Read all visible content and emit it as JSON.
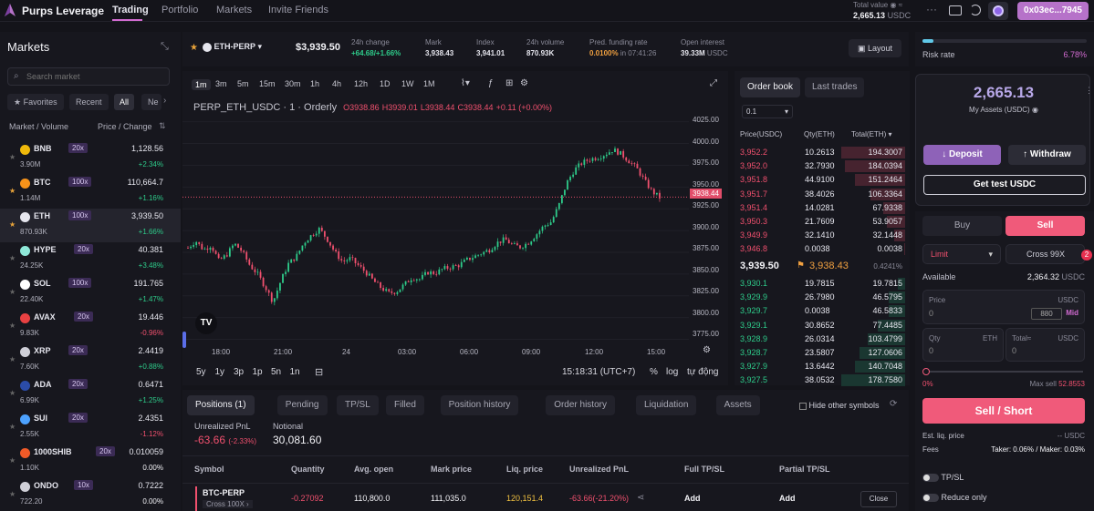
{
  "top": {
    "brand": "Purps Leverage",
    "nav": [
      "Trading",
      "Portfolio",
      "Markets",
      "Invite Friends"
    ],
    "total_value_label": "Total value",
    "total_value": "2,665.13",
    "total_value_unit": "USDC",
    "address": "0x03ec...7945"
  },
  "markets": {
    "title": "Markets",
    "search_placeholder": "Search market",
    "filters": [
      "Favorites",
      "Recent",
      "All",
      "Ne"
    ],
    "col_market": "Market",
    "col_volume": "/ Volume",
    "col_price": "Price / Change",
    "rows": [
      {
        "sym": "BNB",
        "lev": "20x",
        "vol": "3.90M",
        "price": "1,128.56",
        "chg": "+2.34%",
        "up": true,
        "fav": false,
        "color": "#f0b90b"
      },
      {
        "sym": "BTC",
        "lev": "100x",
        "vol": "1.14M",
        "price": "110,664.7",
        "chg": "+1.16%",
        "up": true,
        "fav": true,
        "color": "#f7931a"
      },
      {
        "sym": "ETH",
        "lev": "100x",
        "vol": "870.93K",
        "price": "3,939.50",
        "chg": "+1.66%",
        "up": true,
        "fav": true,
        "color": "#e6e6ee"
      },
      {
        "sym": "HYPE",
        "lev": "20x",
        "vol": "24.25K",
        "price": "40.381",
        "chg": "+3.48%",
        "up": true,
        "fav": false,
        "color": "#8ee8d8"
      },
      {
        "sym": "SOL",
        "lev": "100x",
        "vol": "22.40K",
        "price": "191.765",
        "chg": "+1.47%",
        "up": true,
        "fav": false,
        "color": "#ffffff"
      },
      {
        "sym": "AVAX",
        "lev": "20x",
        "vol": "9.83K",
        "price": "19.446",
        "chg": "-0.96%",
        "up": false,
        "fav": false,
        "color": "#e84142"
      },
      {
        "sym": "XRP",
        "lev": "20x",
        "vol": "7.60K",
        "price": "2.4419",
        "chg": "+0.88%",
        "up": true,
        "fav": false,
        "color": "#cfcfd8"
      },
      {
        "sym": "ADA",
        "lev": "20x",
        "vol": "6.99K",
        "price": "0.6471",
        "chg": "+1.25%",
        "up": true,
        "fav": false,
        "color": "#2b4ca8"
      },
      {
        "sym": "SUI",
        "lev": "20x",
        "vol": "2.55K",
        "price": "2.4351",
        "chg": "-1.12%",
        "up": false,
        "fav": false,
        "color": "#4da2ff"
      },
      {
        "sym": "1000SHIB",
        "lev": "20x",
        "vol": "1.10K",
        "price": "0.010059",
        "chg": "0.00%",
        "up": true,
        "fav": false,
        "color": "#f05a28"
      },
      {
        "sym": "ONDO",
        "lev": "10x",
        "vol": "722.20",
        "price": "0.7222",
        "chg": "0.00%",
        "up": true,
        "fav": false,
        "color": "#d0d0d8"
      }
    ]
  },
  "header": {
    "pair": "ETH-PERP",
    "last_price": "$3,939.50",
    "stats": [
      {
        "label": "24h change",
        "value": "+64.68/+1.66%",
        "tone": "green"
      },
      {
        "label": "Mark",
        "value": "3,938.43",
        "tone": "white"
      },
      {
        "label": "Index",
        "value": "3,941.01",
        "tone": "white"
      },
      {
        "label": "24h volume",
        "value": "870.93K",
        "tone": "white"
      },
      {
        "label": "Pred. funding rate",
        "value": "0.0100%",
        "extra": "in 07:41:26",
        "tone": "orange"
      },
      {
        "label": "Open interest",
        "value": "39.33M",
        "extra": "USDC",
        "tone": "white"
      }
    ],
    "layout_label": "Layout"
  },
  "chart": {
    "timeframes": [
      "1m",
      "3m",
      "5m",
      "15m",
      "30m",
      "1h",
      "4h",
      "12h",
      "1D",
      "1W",
      "1M"
    ],
    "selected_tf": "1m",
    "legend_symbol": "PERP_ETH_USDC · 1 · Orderly",
    "o": "O3938.86",
    "h": "H3939.01",
    "l": "L3938.44",
    "c": "C3938.44",
    "chg": "+0.11 (+0.00%)",
    "y_ticks": [
      "4025.00",
      "4000.00",
      "3975.00",
      "3950.00",
      "3925.00",
      "3900.00",
      "3875.00",
      "3850.00",
      "3825.00",
      "3800.00",
      "3775.00"
    ],
    "x_ticks": [
      "18:00",
      "21:00",
      "24",
      "03:00",
      "06:00",
      "09:00",
      "12:00",
      "15:00"
    ],
    "current_price_tag": "3938.44",
    "ranges": [
      "5y",
      "1y",
      "3p",
      "1p",
      "5n",
      "1n"
    ],
    "clock": "15:18:31 (UTC+7)",
    "options": [
      "%",
      "log",
      "tự động"
    ],
    "chart_data": {
      "type": "candlestick",
      "title": "PERP_ETH_USDC · 1 · Orderly",
      "ylim": [
        3765,
        4032
      ],
      "x_labels": [
        "18:00",
        "21:00",
        "24",
        "03:00",
        "06:00",
        "09:00",
        "12:00",
        "15:00"
      ],
      "series": [
        {
          "values": [
            3880,
            3888,
            3878,
            3883,
            3865,
            3872,
            3885,
            3876,
            3860,
            3850,
            3835,
            3818,
            3842,
            3862,
            3870,
            3886,
            3895,
            3902,
            3890,
            3875,
            3864,
            3868,
            3860,
            3852,
            3842,
            3834,
            3828,
            3830,
            3838,
            3846,
            3844,
            3852,
            3851,
            3856,
            3858,
            3860,
            3866,
            3870,
            3874,
            3878,
            3886,
            3890,
            3883,
            3881,
            3886,
            3895,
            3905,
            3910,
            3930,
            3955,
            3970,
            3978,
            3982,
            3984,
            3988,
            3993,
            3988,
            3980,
            3972,
            3958,
            3945,
            3938
          ]
        }
      ]
    }
  },
  "book": {
    "tabs": [
      "Order book",
      "Last trades"
    ],
    "step": "0.1",
    "cols": [
      "Price(USDC)",
      "Qty(ETH)",
      "Total(ETH)"
    ],
    "asks": [
      [
        "3,952.2",
        "10.2613",
        "194.3007"
      ],
      [
        "3,952.0",
        "32.7930",
        "184.0394"
      ],
      [
        "3,951.8",
        "44.9100",
        "151.2464"
      ],
      [
        "3,951.7",
        "38.4026",
        "106.3364"
      ],
      [
        "3,951.4",
        "14.0281",
        "67.9338"
      ],
      [
        "3,950.3",
        "21.7609",
        "53.9057"
      ],
      [
        "3,949.9",
        "32.1410",
        "32.1448"
      ],
      [
        "3,946.8",
        "0.0038",
        "0.0038"
      ]
    ],
    "mid_price": "3,939.50",
    "mark_price": "3,938.43",
    "spread": "0.4241%",
    "bids": [
      [
        "3,930.1",
        "19.7815",
        "19.7815"
      ],
      [
        "3,929.9",
        "26.7980",
        "46.5795"
      ],
      [
        "3,929.7",
        "0.0038",
        "46.5833"
      ],
      [
        "3,929.1",
        "30.8652",
        "77.4485"
      ],
      [
        "3,928.9",
        "26.0314",
        "103.4799"
      ],
      [
        "3,928.7",
        "23.5807",
        "127.0606"
      ],
      [
        "3,927.9",
        "13.6442",
        "140.7048"
      ],
      [
        "3,927.5",
        "38.0532",
        "178.7580"
      ]
    ],
    "ask_depth": [
      1.0,
      0.95,
      0.78,
      0.55,
      0.35,
      0.28,
      0.17,
      0.02
    ],
    "bid_depth": [
      0.11,
      0.26,
      0.26,
      0.43,
      0.58,
      0.71,
      0.79,
      1.0
    ]
  },
  "positions": {
    "tabs": [
      "Positions (1)",
      "Pending",
      "TP/SL",
      "Filled",
      "Position history",
      "Order history",
      "Liquidation",
      "Assets"
    ],
    "hide_other": "Hide other symbols",
    "upnl_label": "Unrealized PnL",
    "upnl_value": "-63.66",
    "upnl_pct": "(-2.33%)",
    "notional_label": "Notional",
    "notional_value": "30,081.60",
    "cols": [
      "Symbol",
      "Quantity",
      "Avg. open",
      "Mark price",
      "Liq. price",
      "Unrealized PnL",
      "Full TP/SL",
      "Partial TP/SL"
    ],
    "row": {
      "symbol": "BTC-PERP",
      "margin": "Cross 100X",
      "qty": "-0.27092",
      "avg_open": "110,800.0",
      "mark": "111,035.0",
      "liq": "120,151.4",
      "upnl": "-63.66(-21.20%)",
      "full_tpsl": "Add",
      "partial_tpsl": "Add",
      "close": "Close"
    }
  },
  "right": {
    "risk_label": "Risk rate",
    "risk_value": "6.78%",
    "risk_level": 0.0678,
    "assets_value": "2,665.13",
    "assets_label": "My Assets (USDC)",
    "deposit": "Deposit",
    "withdraw": "Withdraw",
    "get_test": "Get test USDC",
    "buy": "Buy",
    "sell": "Sell",
    "order_type": "Limit",
    "margin_mode": "Cross 99X",
    "available_label": "Available",
    "available_value": "2,364.32",
    "available_unit": "USDC",
    "price_label": "Price",
    "price_unit": "USDC",
    "price_value": "0",
    "price_btn": "880",
    "mid": "Mid",
    "qty_label": "Qty",
    "qty_unit": "ETH",
    "qty_value": "0",
    "total_label": "Total≈",
    "total_unit": "USDC",
    "total_value": "0",
    "slider_value": "0%",
    "max_sell_label": "Max sell",
    "max_sell_value": "52.8553",
    "sell_short": "Sell / Short",
    "est_liq_label": "Est. liq. price",
    "est_liq_value": "-- USDC",
    "fees_label": "Fees",
    "fees_value": "Taker: 0.06% / Maker: 0.03%",
    "tpsl": "TP/SL",
    "reduce_only": "Reduce only",
    "badge": "2"
  }
}
